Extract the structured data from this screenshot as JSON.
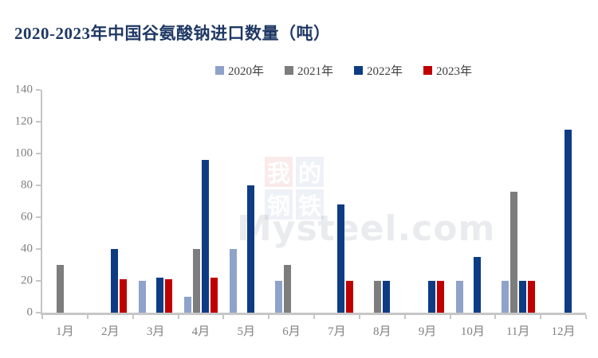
{
  "chart_data": {
    "type": "bar",
    "title": "2020-2023年中国谷氨酸钠进口数量（吨）",
    "categories": [
      "1月",
      "2月",
      "3月",
      "4月",
      "5月",
      "6月",
      "7月",
      "8月",
      "9月",
      "10月",
      "11月",
      "12月"
    ],
    "series": [
      {
        "name": "2020年",
        "color": "#8EA3C9",
        "values": [
          null,
          null,
          20,
          10,
          40,
          20,
          null,
          null,
          null,
          20,
          20,
          null
        ]
      },
      {
        "name": "2021年",
        "color": "#7D7D7D",
        "values": [
          30,
          null,
          null,
          40,
          null,
          30,
          null,
          20,
          null,
          null,
          76,
          null
        ]
      },
      {
        "name": "2022年",
        "color": "#0D3C84",
        "values": [
          null,
          40,
          22,
          96,
          80,
          null,
          68,
          20,
          20,
          35,
          20,
          115
        ]
      },
      {
        "name": "2023年",
        "color": "#C00000",
        "values": [
          null,
          21,
          21,
          22,
          null,
          null,
          20,
          null,
          20,
          null,
          20,
          null
        ]
      }
    ],
    "ylim": [
      0,
      140
    ],
    "yticks": [
      0,
      20,
      40,
      60,
      80,
      100,
      120,
      140
    ],
    "grid": false,
    "legend_position": "top-center",
    "xlabel": "",
    "ylabel": ""
  },
  "watermark": {
    "tiles": [
      "我",
      "的",
      "钢",
      "铁"
    ],
    "tile_colors": [
      "red",
      "blue",
      "blue",
      "blue"
    ],
    "text": "Mysteel.com"
  },
  "style_colors": {
    "title": "#1F3864",
    "axis_line": "#C6C6C6",
    "axis_text": "#808080",
    "legend_text": "#404040",
    "background": "#FFFFFF"
  }
}
